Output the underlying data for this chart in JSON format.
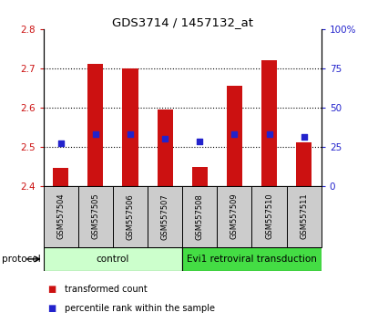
{
  "title": "GDS3714 / 1457132_at",
  "samples": [
    "GSM557504",
    "GSM557505",
    "GSM557506",
    "GSM557507",
    "GSM557508",
    "GSM557509",
    "GSM557510",
    "GSM557511"
  ],
  "transformed_count_top": [
    2.445,
    2.71,
    2.7,
    2.595,
    2.448,
    2.655,
    2.72,
    2.51
  ],
  "transformed_count_bottom": [
    2.4,
    2.4,
    2.4,
    2.4,
    2.4,
    2.4,
    2.4,
    2.4
  ],
  "percentile_rank": [
    27,
    33,
    33,
    30,
    28,
    33,
    33,
    31
  ],
  "ylim_left": [
    2.4,
    2.8
  ],
  "ylim_right": [
    0,
    100
  ],
  "yticks_left": [
    2.4,
    2.5,
    2.6,
    2.7,
    2.8
  ],
  "yticks_right": [
    0,
    25,
    50,
    75,
    100
  ],
  "ytick_labels_right": [
    "0",
    "25",
    "50",
    "75",
    "100%"
  ],
  "bar_color": "#cc1111",
  "dot_color": "#2222cc",
  "bar_width": 0.45,
  "groups": [
    {
      "label": "control",
      "start": 0,
      "end": 3,
      "color": "#ccffcc"
    },
    {
      "label": "Evi1 retroviral transduction",
      "start": 4,
      "end": 7,
      "color": "#44dd44"
    }
  ],
  "protocol_label": "protocol",
  "legend_items": [
    {
      "label": "transformed count",
      "color": "#cc1111"
    },
    {
      "label": "percentile rank within the sample",
      "color": "#2222cc"
    }
  ],
  "background_color": "#ffffff",
  "xlabel_color_left": "#cc1111",
  "xlabel_color_right": "#2222cc",
  "tick_label_area_color": "#cccccc",
  "tick_label_area_border": "#000000",
  "gridline_vals": [
    2.5,
    2.6,
    2.7
  ]
}
